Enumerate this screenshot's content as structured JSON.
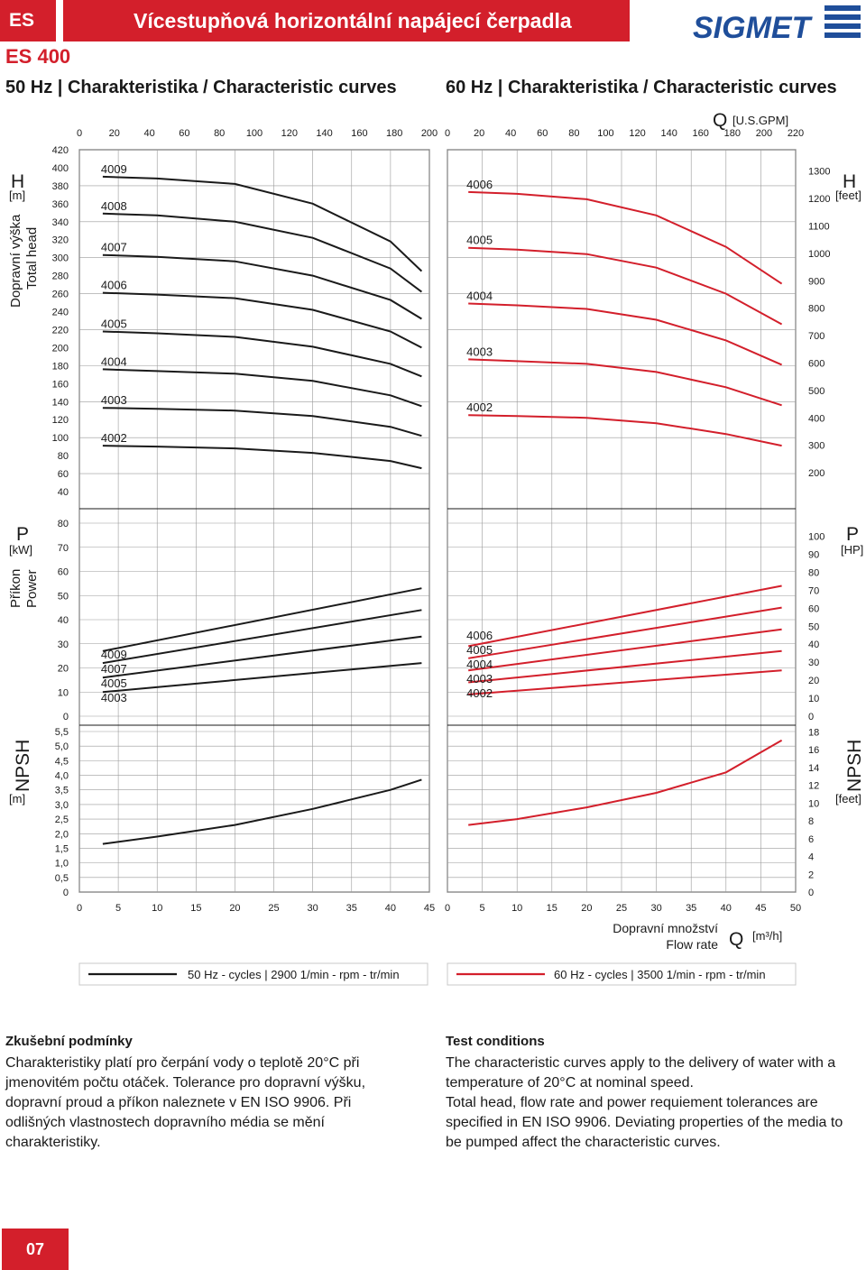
{
  "header": {
    "series_code": "ES",
    "title": "Vícestupňová horizontální napájecí čerpadla",
    "model": "ES 400",
    "brand": "SIGMET",
    "accent_color": "#d31f2b"
  },
  "section_50hz_title": "50 Hz | Charakteristika / Characteristic curves",
  "section_60hz_title": "60 Hz | Charakteristika / Characteristic curves",
  "axis_labels": {
    "q_symbol": "Q",
    "q_us_unit": "[U.S.GPM]",
    "q_metric_unit": "[m³/h]",
    "flow_cz": "Dopravní množství",
    "flow_en": "Flow rate",
    "h_symbol": "H",
    "h_unit_m": "[m]",
    "h_unit_ft": "[feet]",
    "h_cz": "Dopravní výška",
    "h_en": "Total head",
    "p_symbol": "P",
    "p_unit_kw": "[kW]",
    "p_unit_hp": "[HP]",
    "p_cz": "Příkon",
    "p_en": "Power",
    "npsh_symbol": "NPSH",
    "npsh_unit_m": "[m]",
    "npsh_unit_ft": "[feet]"
  },
  "ticks": {
    "gpm_50": [
      "0",
      "20",
      "40",
      "60",
      "80",
      "100",
      "120",
      "140",
      "160",
      "180",
      "200"
    ],
    "gpm_60": [
      "0",
      "20",
      "40",
      "60",
      "80",
      "100",
      "120",
      "140",
      "160",
      "180",
      "200",
      "220"
    ],
    "q_50": [
      "0",
      "5",
      "10",
      "15",
      "20",
      "25",
      "30",
      "35",
      "40",
      "45"
    ],
    "q_60": [
      "0",
      "5",
      "10",
      "15",
      "20",
      "25",
      "30",
      "35",
      "40",
      "45",
      "50"
    ],
    "h_m": [
      "420",
      "400",
      "380",
      "360",
      "340",
      "320",
      "300",
      "280",
      "260",
      "240",
      "220",
      "200",
      "180",
      "160",
      "140",
      "120",
      "100",
      "80",
      "60",
      "40"
    ],
    "h_ft": [
      "1300",
      "1200",
      "1100",
      "1000",
      "900",
      "800",
      "700",
      "600",
      "500",
      "400",
      "300",
      "200"
    ],
    "p_kw": [
      "80",
      "70",
      "60",
      "50",
      "40",
      "30",
      "20",
      "10",
      "0"
    ],
    "p_hp": [
      "100",
      "90",
      "80",
      "70",
      "60",
      "50",
      "40",
      "30",
      "20",
      "10",
      "0"
    ],
    "npsh_m": [
      "5,5",
      "5,0",
      "4,5",
      "4,0",
      "3,5",
      "3,0",
      "2,5",
      "2,0",
      "1,5",
      "1,0",
      "0,5",
      "0"
    ],
    "npsh_ft": [
      "18",
      "16",
      "14",
      "12",
      "10",
      "8",
      "6",
      "4",
      "2",
      "0"
    ]
  },
  "chart_data": [
    {
      "type": "line",
      "title": "50 Hz | Charakteristika / Characteristic curves",
      "xlabel": "Dopravní množství / Flow rate Q [m³/h]",
      "ylabel": "Dopravní výška / Total head H [m]",
      "xlim": [
        0,
        45
      ],
      "ylim": [
        40,
        420
      ],
      "color": "#1a1a1a",
      "series": [
        {
          "name": "4009",
          "x": [
            3,
            10,
            20,
            30,
            40,
            44
          ],
          "y": [
            390,
            388,
            382,
            360,
            318,
            285
          ]
        },
        {
          "name": "4008",
          "x": [
            3,
            10,
            20,
            30,
            40,
            44
          ],
          "y": [
            349,
            347,
            340,
            322,
            288,
            262
          ]
        },
        {
          "name": "4007",
          "x": [
            3,
            10,
            20,
            30,
            40,
            44
          ],
          "y": [
            303,
            301,
            296,
            280,
            253,
            232
          ]
        },
        {
          "name": "4006",
          "x": [
            3,
            10,
            20,
            30,
            40,
            44
          ],
          "y": [
            261,
            259,
            255,
            242,
            218,
            200
          ]
        },
        {
          "name": "4005",
          "x": [
            3,
            10,
            20,
            30,
            40,
            44
          ],
          "y": [
            218,
            216,
            212,
            201,
            182,
            168
          ]
        },
        {
          "name": "4004",
          "x": [
            3,
            10,
            20,
            30,
            40,
            44
          ],
          "y": [
            176,
            174,
            171,
            163,
            147,
            135
          ]
        },
        {
          "name": "4003",
          "x": [
            3,
            10,
            20,
            30,
            40,
            44
          ],
          "y": [
            133,
            132,
            130,
            124,
            112,
            102
          ]
        },
        {
          "name": "4002",
          "x": [
            3,
            10,
            20,
            30,
            40,
            44
          ],
          "y": [
            91,
            90,
            88,
            83,
            74,
            66
          ]
        }
      ]
    },
    {
      "type": "line",
      "title": "50 Hz | Charakteristika / Characteristic curves",
      "xlabel": "Dopravní množství / Flow rate Q [m³/h]",
      "ylabel": "Příkon / Power P [kW]",
      "xlim": [
        0,
        45
      ],
      "ylim": [
        0,
        80
      ],
      "color": "#1a1a1a",
      "series": [
        {
          "name": "4009",
          "x": [
            3,
            44
          ],
          "y": [
            27,
            53
          ]
        },
        {
          "name": "4007",
          "x": [
            3,
            44
          ],
          "y": [
            22,
            44
          ]
        },
        {
          "name": "4005",
          "x": [
            3,
            44
          ],
          "y": [
            16,
            33
          ]
        },
        {
          "name": "4003",
          "x": [
            3,
            44
          ],
          "y": [
            10,
            22
          ]
        }
      ]
    },
    {
      "type": "line",
      "title": "50 Hz | Charakteristika / Characteristic curves",
      "xlabel": "Dopravní množství / Flow rate Q [m³/h]",
      "ylabel": "NPSH [m]",
      "xlim": [
        0,
        45
      ],
      "ylim": [
        0,
        5.5
      ],
      "color": "#1a1a1a",
      "series": [
        {
          "name": "NPSH",
          "x": [
            3,
            10,
            20,
            30,
            40,
            44
          ],
          "y": [
            1.65,
            1.9,
            2.3,
            2.85,
            3.5,
            3.85
          ]
        }
      ]
    },
    {
      "type": "line",
      "title": "60 Hz | Charakteristika / Characteristic curves",
      "xlabel": "Dopravní množství / Flow rate Q [m³/h]",
      "ylabel": "Dopravní výška / Total head H [feet]",
      "xlim": [
        0,
        50
      ],
      "ylim": [
        40,
        420
      ],
      "color": "#d31f2b",
      "series": [
        {
          "name": "4006",
          "x": [
            3,
            10,
            20,
            30,
            40,
            48
          ],
          "y": [
            373,
            371,
            365,
            347,
            312,
            271
          ]
        },
        {
          "name": "4005",
          "x": [
            3,
            10,
            20,
            30,
            40,
            48
          ],
          "y": [
            311,
            309,
            304,
            289,
            260,
            226
          ]
        },
        {
          "name": "4004",
          "x": [
            3,
            10,
            20,
            30,
            40,
            48
          ],
          "y": [
            249,
            247,
            243,
            231,
            208,
            181
          ]
        },
        {
          "name": "4003",
          "x": [
            3,
            10,
            20,
            30,
            40,
            48
          ],
          "y": [
            187,
            185,
            182,
            173,
            156,
            136
          ]
        },
        {
          "name": "4002",
          "x": [
            3,
            10,
            20,
            30,
            40,
            48
          ],
          "y": [
            125,
            124,
            122,
            116,
            104,
            91
          ]
        }
      ]
    },
    {
      "type": "line",
      "title": "60 Hz | Charakteristika / Characteristic curves",
      "xlabel": "Dopravní množství / Flow rate Q [m³/h]",
      "ylabel": "Příkon / Power P [HP]",
      "xlim": [
        0,
        50
      ],
      "ylim": [
        0,
        80
      ],
      "color": "#d31f2b",
      "series": [
        {
          "name": "4006",
          "x": [
            3,
            48
          ],
          "y": [
            29,
            54
          ]
        },
        {
          "name": "4005",
          "x": [
            3,
            48
          ],
          "y": [
            24,
            45
          ]
        },
        {
          "name": "4004",
          "x": [
            3,
            48
          ],
          "y": [
            19,
            36
          ]
        },
        {
          "name": "4003",
          "x": [
            3,
            48
          ],
          "y": [
            14,
            27
          ]
        },
        {
          "name": "4002",
          "x": [
            3,
            48
          ],
          "y": [
            9,
            19
          ]
        }
      ]
    },
    {
      "type": "line",
      "title": "60 Hz | Charakteristika / Characteristic curves",
      "xlabel": "Dopravní množství / Flow rate Q [m³/h]",
      "ylabel": "NPSH [feet]",
      "xlim": [
        0,
        50
      ],
      "ylim": [
        0,
        5.5
      ],
      "color": "#d31f2b",
      "series": [
        {
          "name": "NPSH",
          "x": [
            3,
            10,
            20,
            30,
            40,
            48
          ],
          "y": [
            2.3,
            2.5,
            2.9,
            3.4,
            4.1,
            5.2
          ]
        }
      ]
    }
  ],
  "legend": {
    "hz50": "50 Hz - cycles | 2900 1/min - rpm - tr/min",
    "hz60": "60 Hz - cycles | 3500 1/min - rpm - tr/min",
    "hz50_color": "#1a1a1a",
    "hz60_color": "#d31f2b"
  },
  "test_conditions": {
    "cz_title": "Zkušební podmínky",
    "cz_text": "Charakteristiky platí pro čerpání vody o teplotě 20°C při jmenovitém počtu otáček. Tolerance pro dopravní výšku, dopravní proud a příkon naleznete v EN ISO 9906. Při odlišných vlastnostech dopravního média se mění charakteristiky.",
    "en_title": "Test conditions",
    "en_text_1": "The characteristic curves apply to the delivery of water with a temperature of 20°C at nominal speed.",
    "en_text_2": "Total head, flow rate and power requiement tolerances are specified in EN ISO 9906. Deviating properties of the media to be pumped affect the characteristic curves."
  },
  "page_number": "07"
}
